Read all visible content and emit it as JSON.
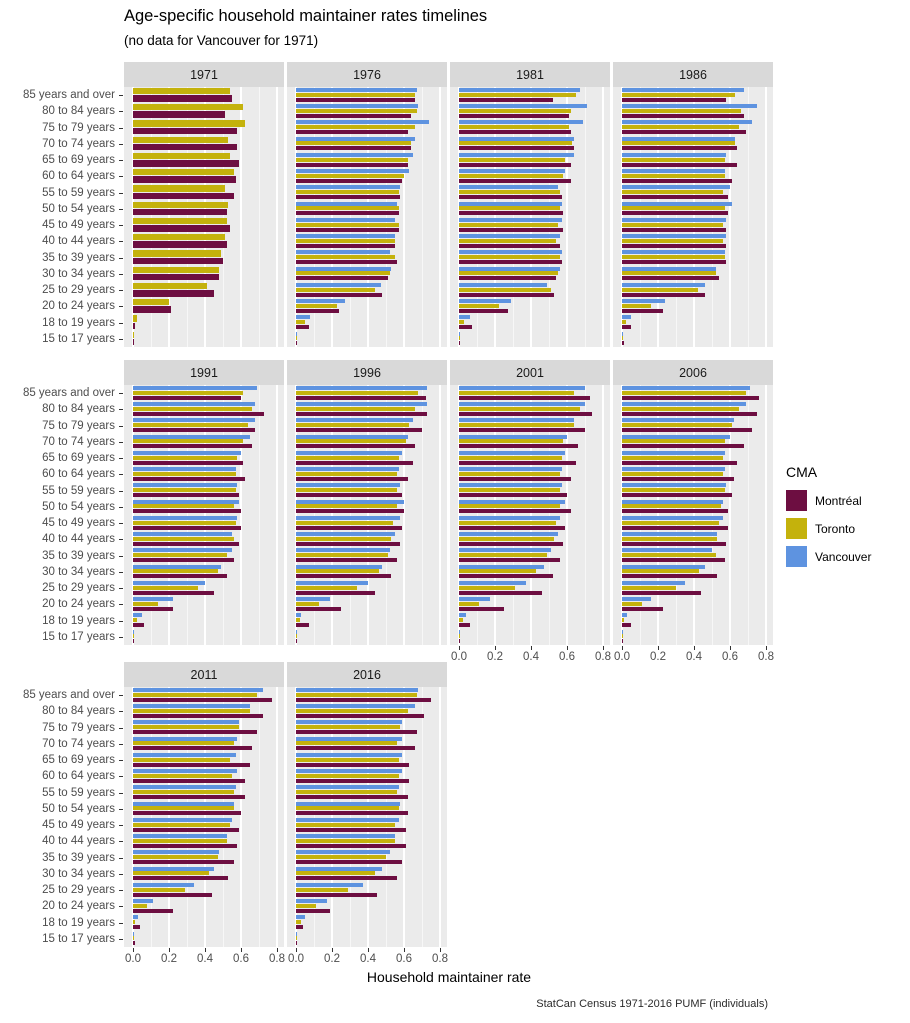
{
  "title": "Age-specific household maintainer rates timelines",
  "subtitle": "(no data for Vancouver for 1971)",
  "xaxis_title": "Household maintainer rate",
  "caption": "StatCan Census 1971-2016 PUMF (individuals)",
  "legend": {
    "title": "CMA"
  },
  "colors": {
    "panel_background": "#EBEBEB",
    "strip_background": "#D9D9D9",
    "gridline": "#FFFFFF"
  },
  "chart_data": {
    "type": "bar",
    "orientation": "horizontal",
    "title": "Age-specific household maintainer rates timelines",
    "subtitle": "(no data for Vancouver for 1971)",
    "xlabel": "Household maintainer rate",
    "caption": "StatCan Census 1971-2016 PUMF (individuals)",
    "legend_title": "CMA",
    "legend_position": "right",
    "grid": "white major gridlines every 0.2, minor every 0.1, on grey panel",
    "xlim": [
      0,
      0.8
    ],
    "x_tick_labels": [
      "0.0",
      "0.2",
      "0.4",
      "0.6",
      "0.8"
    ],
    "x_tick_values": [
      0,
      0.2,
      0.4,
      0.6,
      0.8
    ],
    "categories": [
      "85 years and over",
      "80 to 84 years",
      "75 to 79 years",
      "70 to 74 years",
      "65 to 69 years",
      "60 to 64 years",
      "55 to 59 years",
      "50 to 54 years",
      "45 to 49 years",
      "40 to 44 years",
      "35 to 39 years",
      "30 to 34 years",
      "25 to 29 years",
      "20 to 24 years",
      "18 to 19 years",
      "15 to 17 years"
    ],
    "series_names": [
      "Montréal",
      "Toronto",
      "Vancouver"
    ],
    "series_colors": {
      "Montréal": "#6D0E41",
      "Toronto": "#C4B20C",
      "Vancouver": "#5E93E0"
    },
    "bar_order_top_to_bottom": [
      "Vancouver",
      "Toronto",
      "Montréal"
    ],
    "facets": [
      {
        "label": "1971",
        "series": {
          "Montréal": [
            0.55,
            0.51,
            0.58,
            0.58,
            0.59,
            0.57,
            0.56,
            0.52,
            0.54,
            0.52,
            0.5,
            0.48,
            0.45,
            0.21,
            0.01,
            0.005
          ],
          "Toronto": [
            0.54,
            0.61,
            0.62,
            0.53,
            0.54,
            0.56,
            0.51,
            0.53,
            0.52,
            0.51,
            0.49,
            0.48,
            0.41,
            0.2,
            0.02,
            0.005
          ],
          "Vancouver": null
        }
      },
      {
        "label": "1976",
        "series": {
          "Montréal": [
            0.66,
            0.64,
            0.62,
            0.64,
            0.62,
            0.59,
            0.58,
            0.57,
            0.57,
            0.55,
            0.56,
            0.51,
            0.48,
            0.24,
            0.07,
            0.005
          ],
          "Toronto": [
            0.66,
            0.67,
            0.66,
            0.64,
            0.62,
            0.6,
            0.57,
            0.57,
            0.57,
            0.55,
            0.55,
            0.52,
            0.44,
            0.23,
            0.05,
            0.005
          ],
          "Vancouver": [
            0.67,
            0.68,
            0.74,
            0.66,
            0.65,
            0.63,
            0.58,
            0.56,
            0.55,
            0.55,
            0.52,
            0.53,
            0.47,
            0.27,
            0.08,
            0.005
          ]
        }
      },
      {
        "label": "1981",
        "series": {
          "Montréal": [
            0.52,
            0.61,
            0.62,
            0.64,
            0.62,
            0.62,
            0.57,
            0.58,
            0.58,
            0.56,
            0.57,
            0.54,
            0.53,
            0.27,
            0.07,
            0.005
          ],
          "Toronto": [
            0.65,
            0.62,
            0.61,
            0.63,
            0.59,
            0.58,
            0.56,
            0.56,
            0.55,
            0.54,
            0.56,
            0.55,
            0.51,
            0.22,
            0.03,
            0.005
          ],
          "Vancouver": [
            0.67,
            0.71,
            0.69,
            0.64,
            0.64,
            0.59,
            0.55,
            0.57,
            0.57,
            0.56,
            0.57,
            0.56,
            0.49,
            0.29,
            0.06,
            0.005
          ]
        }
      },
      {
        "label": "1986",
        "series": {
          "Montréal": [
            0.58,
            0.68,
            0.69,
            0.64,
            0.64,
            0.61,
            0.59,
            0.59,
            0.58,
            0.58,
            0.58,
            0.54,
            0.46,
            0.23,
            0.05,
            0.01
          ],
          "Toronto": [
            0.63,
            0.66,
            0.65,
            0.63,
            0.57,
            0.57,
            0.56,
            0.57,
            0.56,
            0.56,
            0.57,
            0.52,
            0.42,
            0.16,
            0.02,
            0.005
          ],
          "Vancouver": [
            0.68,
            0.75,
            0.72,
            0.63,
            0.58,
            0.57,
            0.6,
            0.61,
            0.58,
            0.58,
            0.57,
            0.52,
            0.46,
            0.24,
            0.05,
            0.005
          ]
        }
      },
      {
        "label": "1991",
        "series": {
          "Montréal": [
            0.6,
            0.73,
            0.68,
            0.66,
            0.61,
            0.62,
            0.59,
            0.6,
            0.6,
            0.59,
            0.56,
            0.52,
            0.45,
            0.22,
            0.06,
            0.005
          ],
          "Toronto": [
            0.61,
            0.66,
            0.64,
            0.61,
            0.58,
            0.57,
            0.57,
            0.56,
            0.57,
            0.56,
            0.52,
            0.47,
            0.36,
            0.14,
            0.02,
            0.005
          ],
          "Vancouver": [
            0.69,
            0.68,
            0.68,
            0.65,
            0.6,
            0.57,
            0.58,
            0.59,
            0.58,
            0.55,
            0.55,
            0.49,
            0.4,
            0.22,
            0.05,
            0.005
          ]
        }
      },
      {
        "label": "1996",
        "series": {
          "Montréal": [
            0.72,
            0.73,
            0.7,
            0.66,
            0.65,
            0.62,
            0.59,
            0.6,
            0.59,
            0.58,
            0.56,
            0.53,
            0.44,
            0.25,
            0.07,
            0.005
          ],
          "Toronto": [
            0.68,
            0.66,
            0.63,
            0.61,
            0.57,
            0.56,
            0.56,
            0.56,
            0.54,
            0.53,
            0.51,
            0.46,
            0.34,
            0.13,
            0.02,
            0.005
          ],
          "Vancouver": [
            0.73,
            0.73,
            0.65,
            0.62,
            0.59,
            0.57,
            0.58,
            0.6,
            0.58,
            0.55,
            0.52,
            0.48,
            0.4,
            0.19,
            0.03,
            0.005
          ]
        }
      },
      {
        "label": "2001",
        "series": {
          "Montréal": [
            0.73,
            0.74,
            0.7,
            0.66,
            0.65,
            0.62,
            0.6,
            0.62,
            0.59,
            0.58,
            0.56,
            0.52,
            0.46,
            0.25,
            0.06,
            0.005
          ],
          "Toronto": [
            0.64,
            0.67,
            0.64,
            0.58,
            0.57,
            0.56,
            0.56,
            0.56,
            0.54,
            0.53,
            0.49,
            0.43,
            0.31,
            0.11,
            0.02,
            0.005
          ],
          "Vancouver": [
            0.7,
            0.7,
            0.64,
            0.6,
            0.59,
            0.57,
            0.57,
            0.59,
            0.56,
            0.55,
            0.51,
            0.47,
            0.37,
            0.17,
            0.04,
            0.005
          ]
        }
      },
      {
        "label": "2006",
        "series": {
          "Montréal": [
            0.76,
            0.75,
            0.72,
            0.68,
            0.64,
            0.62,
            0.61,
            0.59,
            0.59,
            0.58,
            0.57,
            0.53,
            0.44,
            0.23,
            0.05,
            0.005
          ],
          "Toronto": [
            0.69,
            0.65,
            0.61,
            0.57,
            0.56,
            0.56,
            0.57,
            0.55,
            0.54,
            0.53,
            0.52,
            0.43,
            0.3,
            0.11,
            0.01,
            0.005
          ],
          "Vancouver": [
            0.71,
            0.69,
            0.62,
            0.6,
            0.57,
            0.57,
            0.58,
            0.56,
            0.56,
            0.53,
            0.5,
            0.46,
            0.35,
            0.16,
            0.03,
            0.005
          ]
        }
      },
      {
        "label": "2011",
        "series": {
          "Montréal": [
            0.77,
            0.72,
            0.69,
            0.66,
            0.65,
            0.62,
            0.62,
            0.6,
            0.59,
            0.58,
            0.56,
            0.53,
            0.44,
            0.22,
            0.04,
            0.01
          ],
          "Toronto": [
            0.69,
            0.65,
            0.59,
            0.56,
            0.54,
            0.55,
            0.56,
            0.56,
            0.54,
            0.52,
            0.47,
            0.42,
            0.29,
            0.08,
            0.01,
            0.005
          ],
          "Vancouver": [
            0.72,
            0.65,
            0.59,
            0.58,
            0.57,
            0.58,
            0.57,
            0.56,
            0.55,
            0.52,
            0.48,
            0.45,
            0.34,
            0.11,
            0.03,
            0.005
          ]
        }
      },
      {
        "label": "2016",
        "series": {
          "Montréal": [
            0.75,
            0.71,
            0.67,
            0.66,
            0.63,
            0.63,
            0.62,
            0.62,
            0.61,
            0.61,
            0.59,
            0.56,
            0.45,
            0.19,
            0.04,
            0.005
          ],
          "Toronto": [
            0.67,
            0.62,
            0.58,
            0.56,
            0.57,
            0.57,
            0.56,
            0.57,
            0.55,
            0.55,
            0.5,
            0.44,
            0.29,
            0.11,
            0.03,
            0.005
          ],
          "Vancouver": [
            0.68,
            0.66,
            0.59,
            0.59,
            0.59,
            0.59,
            0.57,
            0.58,
            0.57,
            0.55,
            0.52,
            0.48,
            0.37,
            0.17,
            0.05,
            0.005
          ]
        }
      }
    ]
  }
}
